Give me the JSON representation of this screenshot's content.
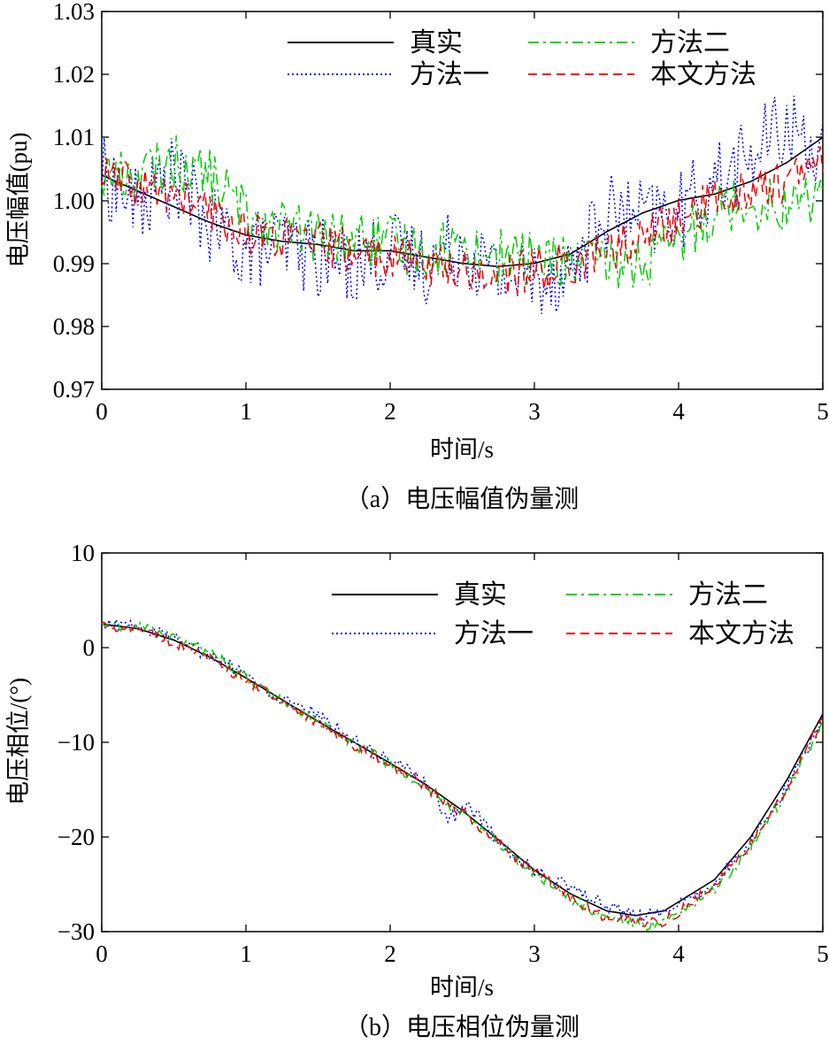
{
  "chart_data": [
    {
      "type": "line",
      "panel_label": "（a）电压幅值伪量测",
      "xlabel": "时间/s",
      "ylabel": "电压幅值(pu)",
      "xlim": [
        0,
        5
      ],
      "ylim": [
        0.97,
        1.03
      ],
      "xticks": [
        "0",
        "1",
        "2",
        "3",
        "4",
        "5"
      ],
      "yticks": [
        "0.97",
        "0.98",
        "0.99",
        "1.00",
        "1.01",
        "1.02",
        "1.03"
      ],
      "grid": false,
      "legend": "top-right",
      "series": [
        {
          "name": "真实",
          "color": "#000000",
          "style": "solid",
          "x": [
            0,
            0.25,
            0.5,
            0.75,
            1.0,
            1.25,
            1.5,
            1.75,
            2.0,
            2.25,
            2.5,
            2.75,
            3.0,
            3.25,
            3.5,
            3.75,
            4.0,
            4.25,
            4.5,
            4.75,
            5.0
          ],
          "y": [
            1.004,
            1.0015,
            0.999,
            0.9965,
            0.9945,
            0.9935,
            0.993,
            0.992,
            0.992,
            0.991,
            0.99,
            0.9895,
            0.99,
            0.9915,
            0.995,
            0.998,
            1.0,
            1.001,
            1.003,
            1.006,
            1.01
          ]
        },
        {
          "name": "方法一",
          "color": "#0000ee",
          "style": "dotted",
          "x": [
            0,
            0.25,
            0.5,
            0.75,
            1.0,
            1.25,
            1.5,
            1.75,
            2.0,
            2.25,
            2.5,
            2.75,
            3.0,
            3.25,
            3.5,
            3.75,
            4.0,
            4.25,
            4.5,
            4.75,
            5.0
          ],
          "y": [
            1.004,
            0.999,
            1.004,
            0.996,
            0.992,
            0.993,
            0.991,
            0.99,
            0.992,
            0.99,
            0.993,
            0.988,
            0.988,
            0.989,
            0.998,
            0.997,
            0.998,
            1.003,
            1.007,
            1.012,
            1.008
          ]
        },
        {
          "name": "方法二",
          "color": "#00cc00",
          "style": "dashdot",
          "x": [
            0,
            0.25,
            0.5,
            0.75,
            1.0,
            1.25,
            1.5,
            1.75,
            2.0,
            2.25,
            2.5,
            2.75,
            3.0,
            3.25,
            3.5,
            3.75,
            4.0,
            4.25,
            4.5,
            4.75,
            5.0
          ],
          "y": [
            1.004,
            1.004,
            1.006,
            1.004,
            0.998,
            0.996,
            0.994,
            0.994,
            0.993,
            0.992,
            0.993,
            0.991,
            0.991,
            0.99,
            0.99,
            0.99,
            0.993,
            0.999,
            1.0,
            0.999,
            1.001
          ]
        },
        {
          "name": "本文方法",
          "color": "#ee0000",
          "style": "dashed",
          "x": [
            0,
            0.25,
            0.5,
            0.75,
            1.0,
            1.25,
            1.5,
            1.75,
            2.0,
            2.25,
            2.5,
            2.75,
            3.0,
            3.25,
            3.5,
            3.75,
            4.0,
            4.25,
            4.5,
            4.75,
            5.0
          ],
          "y": [
            1.004,
            1.002,
            1.001,
            0.998,
            0.995,
            0.994,
            0.993,
            0.992,
            0.991,
            0.99,
            0.989,
            0.988,
            0.989,
            0.99,
            0.992,
            0.994,
            0.997,
            1.0,
            1.002,
            1.003,
            1.006
          ]
        }
      ]
    },
    {
      "type": "line",
      "panel_label": "（b）电压相位伪量测",
      "xlabel": "时间/s",
      "ylabel": "电压相位/(°)",
      "xlim": [
        0,
        5
      ],
      "ylim": [
        -30,
        10
      ],
      "xticks": [
        "0",
        "1",
        "2",
        "3",
        "4",
        "5"
      ],
      "yticks": [
        "−30",
        "−20",
        "−10",
        "0",
        "10"
      ],
      "grid": false,
      "legend": "top-right",
      "series": [
        {
          "name": "真实",
          "color": "#000000",
          "style": "solid",
          "x": [
            0,
            0.25,
            0.5,
            0.75,
            1.0,
            1.25,
            1.5,
            1.75,
            2.0,
            2.25,
            2.5,
            2.75,
            3.0,
            3.25,
            3.5,
            3.7,
            3.9,
            4.25,
            4.5,
            4.75,
            5.0
          ],
          "y": [
            2.5,
            2.0,
            0.8,
            -1.0,
            -3.2,
            -5.5,
            -7.8,
            -10.0,
            -12.2,
            -14.5,
            -17.2,
            -20.3,
            -23.5,
            -26.0,
            -27.8,
            -28.3,
            -27.8,
            -24.5,
            -20.0,
            -14.0,
            -7.0
          ]
        },
        {
          "name": "方法一",
          "color": "#0000ee",
          "style": "dotted",
          "x": [
            0,
            0.25,
            0.5,
            0.75,
            1.0,
            1.25,
            1.5,
            1.75,
            2.0,
            2.25,
            2.4,
            2.55,
            2.75,
            3.0,
            3.25,
            3.5,
            3.75,
            3.9,
            4.25,
            4.5,
            4.75,
            5.0
          ],
          "y": [
            2.3,
            2.4,
            0.9,
            -0.8,
            -3.0,
            -5.4,
            -7.2,
            -9.8,
            -12.0,
            -14.2,
            -18.2,
            -16.8,
            -20.5,
            -23.6,
            -25.2,
            -27.2,
            -28.5,
            -28.0,
            -25.0,
            -20.5,
            -14.8,
            -7.5
          ]
        },
        {
          "name": "方法二",
          "color": "#00cc00",
          "style": "dashdot",
          "x": [
            0,
            0.25,
            0.5,
            0.75,
            1.0,
            1.25,
            1.5,
            1.75,
            2.0,
            2.25,
            2.5,
            2.75,
            3.0,
            3.25,
            3.5,
            3.75,
            3.9,
            4.25,
            4.5,
            4.75,
            5.0
          ],
          "y": [
            2.3,
            2.2,
            1.0,
            -0.5,
            -3.3,
            -5.6,
            -8.0,
            -10.2,
            -12.3,
            -14.6,
            -17.6,
            -20.6,
            -23.8,
            -26.5,
            -28.6,
            -29.3,
            -29.2,
            -25.6,
            -21.0,
            -15.2,
            -8.0
          ]
        },
        {
          "name": "本文方法",
          "color": "#ee0000",
          "style": "dashed",
          "x": [
            0,
            0.25,
            0.5,
            0.75,
            1.0,
            1.25,
            1.5,
            1.75,
            2.0,
            2.25,
            2.5,
            2.75,
            3.0,
            3.25,
            3.5,
            3.75,
            3.9,
            4.25,
            4.5,
            4.75,
            5.0
          ],
          "y": [
            2.4,
            2.1,
            0.6,
            -1.3,
            -3.4,
            -5.7,
            -8.1,
            -10.3,
            -12.4,
            -14.7,
            -17.5,
            -20.6,
            -23.7,
            -26.4,
            -28.5,
            -29.0,
            -28.9,
            -25.2,
            -20.6,
            -14.8,
            -7.5
          ]
        }
      ]
    }
  ]
}
